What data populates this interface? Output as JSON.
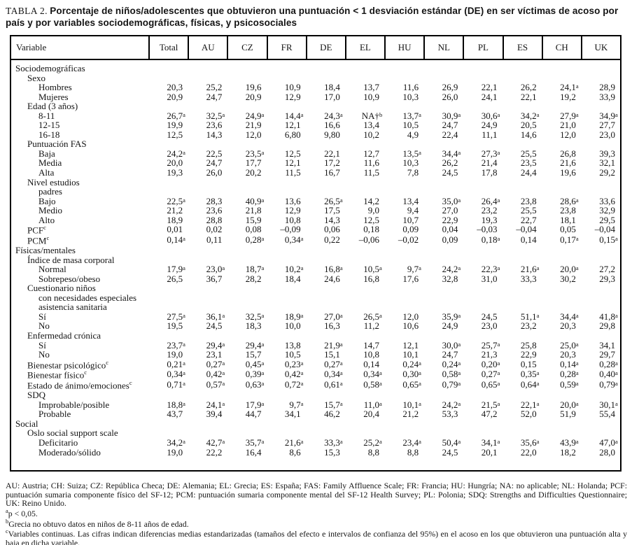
{
  "title": {
    "label": "TABLA 2.",
    "caption": "Porcentaje de niños/adolescentes que obtuvieron una puntuación < 1 desviación estándar (DE) en ser víctimas de acoso por país y por variables sociodemográficas, físicas, y psicosociales"
  },
  "table": {
    "columns": [
      "Variable",
      "Total",
      "AU",
      "CZ",
      "FR",
      "DE",
      "EL",
      "HU",
      "NL",
      "PL",
      "ES",
      "CH",
      "UK"
    ],
    "rows": [
      {
        "label": "Sociodemográficas",
        "indent": 0
      },
      {
        "label": "Sexo",
        "indent": 1
      },
      {
        "label": "Hombres",
        "indent": 2,
        "cells": [
          "20,3",
          "25,2",
          "19,6",
          "10,9",
          "18,4",
          "13,7",
          "11,6",
          "26,9",
          "22,1",
          "26,2",
          "24,1|a",
          "28,9"
        ]
      },
      {
        "label": "Mujeres",
        "indent": 2,
        "cells": [
          "20,9",
          "24,7",
          "20,9",
          "12,9",
          "17,0",
          "10,9",
          "10,3",
          "26,0",
          "24,1",
          "22,1",
          "19,2",
          "33,9"
        ]
      },
      {
        "label": "Edad (3 años)",
        "indent": 1
      },
      {
        "label": "8-11",
        "indent": 2,
        "cells": [
          "26,7|a",
          "32,5|a",
          "24,9|a",
          "14,4|a",
          "24,3|a",
          "NA†|b",
          "13,7|a",
          "30,9|a",
          "30,6|a",
          "34,2|a",
          "27,9|a",
          "34,9|a"
        ]
      },
      {
        "label": "12-15",
        "indent": 2,
        "cells": [
          "19,9",
          "23,6",
          "21,9",
          "12,1",
          "16,6",
          "13,4",
          "10,5",
          "24,7",
          "24,9",
          "20,5",
          "21,0",
          "27,7"
        ]
      },
      {
        "label": "16-18",
        "indent": 2,
        "cells": [
          "12,5",
          "14,3",
          "12,0",
          "6,80",
          "9,80",
          "10,2",
          "4,9",
          "22,4",
          "11,1",
          "14,6",
          "12,0",
          "23,0"
        ]
      },
      {
        "label": "Puntuación FAS",
        "indent": 1
      },
      {
        "label": "Baja",
        "indent": 2,
        "cells": [
          "24,2|a",
          "22,5",
          "23,5|a",
          "12,5",
          "22,1",
          "12,7",
          "13,5|a",
          "34,4|a",
          "27,3|a",
          "25,5",
          "26,8",
          "39,3"
        ]
      },
      {
        "label": "Media",
        "indent": 2,
        "cells": [
          "20,0",
          "24,7",
          "17,7",
          "12,1",
          "17,2",
          "11,6",
          "10,3",
          "26,2",
          "21,4",
          "23,5",
          "21,6",
          "32,1"
        ]
      },
      {
        "label": "Alta",
        "indent": 2,
        "cells": [
          "19,3",
          "26,0",
          "20,2",
          "11,5",
          "16,7",
          "11,5",
          "7,8",
          "24,5",
          "17,8",
          "24,4",
          "19,6",
          "29,2"
        ]
      },
      {
        "label": "Nivel estudios",
        "indent": 1
      },
      {
        "label": "padres",
        "indent": 2
      },
      {
        "label": "Bajo",
        "indent": 2,
        "cells": [
          "22,5|a",
          "28,3",
          "40,9|a",
          "13,6",
          "26,5|a",
          "14,2",
          "13,4",
          "35,0|a",
          "26,4|a",
          "23,8",
          "28,6|a",
          "33,6"
        ]
      },
      {
        "label": "Medio",
        "indent": 2,
        "cells": [
          "21,2",
          "23,6",
          "21,8",
          "12,9",
          "17,5",
          "9,0",
          "9,4",
          "27,0",
          "23,2",
          "25,5",
          "23,8",
          "32,9"
        ]
      },
      {
        "label": "Alto",
        "indent": 2,
        "cells": [
          "18,9",
          "28,8",
          "15,9",
          "10,8",
          "14,3",
          "12,5",
          "10,7",
          "22,9",
          "19,3",
          "22,7",
          "18,1",
          "29,5"
        ]
      },
      {
        "label": "PCF",
        "sup": "c",
        "indent": 1,
        "cells": [
          "0,01",
          "0,02",
          "0,08",
          "–0,09",
          "0,06",
          "0,18",
          "0,09",
          "0,04",
          "–0,03",
          "–0,04",
          "0,05",
          "–0,04"
        ]
      },
      {
        "label": "PCM",
        "sup": "c",
        "indent": 1,
        "cells": [
          "0,14|a",
          "0,11",
          "0,28|a",
          "0,34|a",
          "0,22",
          "–0,06",
          "–0,02",
          "0,09",
          "0,18|a",
          "0,14",
          "0,17|a",
          "0,15|a"
        ]
      },
      {
        "label": "Físicas/mentales",
        "indent": 0
      },
      {
        "label": "Índice de masa corporal",
        "indent": 1
      },
      {
        "label": "Normal",
        "indent": 2,
        "cells": [
          "17,9|a",
          "23,0|a",
          "18,7|a",
          "10,2|a",
          "16,8|a",
          "10,5|a",
          "9,7|a",
          "24,2|a",
          "22,3|a",
          "21,6|a",
          "20,0|a",
          "27,2"
        ]
      },
      {
        "label": "Sobrepeso/obeso",
        "indent": 2,
        "cells": [
          "26,5",
          "36,7",
          "28,2",
          "18,4",
          "24,6",
          "16,8",
          "17,6",
          "32,8",
          "31,0",
          "33,3",
          "30,2",
          "29,3"
        ]
      },
      {
        "label": "Cuestionario niños",
        "indent": 1
      },
      {
        "label": "con necesidades especiales",
        "indent": 2
      },
      {
        "label": "asistencia sanitaria",
        "indent": 2
      },
      {
        "label": "Sí",
        "indent": 2,
        "cells": [
          "27,5|a",
          "36,1|a",
          "32,5|a",
          "18,9|a",
          "27,0|a",
          "26,5|a",
          "12,0",
          "35,9|a",
          "24,5",
          "51,1|a",
          "34,4|a",
          "41,8|a"
        ]
      },
      {
        "label": "No",
        "indent": 2,
        "cells": [
          "19,5",
          "24,5",
          "18,3",
          "10,0",
          "16,3",
          "11,2",
          "10,6",
          "24,9",
          "23,0",
          "23,2",
          "20,3",
          "29,8"
        ]
      },
      {
        "label": "Enfermedad crónica",
        "indent": 1
      },
      {
        "label": "Sí",
        "indent": 2,
        "cells": [
          "23,7|a",
          "29,4|a",
          "29,4|a",
          "13,8",
          "21,9|a",
          "14,7",
          "12,1",
          "30,0|a",
          "25,7|a",
          "25,8",
          "25,0|a",
          "34,1"
        ]
      },
      {
        "label": "No",
        "indent": 2,
        "cells": [
          "19,0",
          "23,1",
          "15,7",
          "10,5",
          "15,1",
          "10,8",
          "10,1",
          "24,7",
          "21,3",
          "22,9",
          "20,3",
          "29,7"
        ]
      },
      {
        "label": "Bienestar psicológico",
        "sup": "c",
        "indent": 1,
        "cells": [
          "0,21|a",
          "0,27|a",
          "0,45|a",
          "0,23|a",
          "0,27|a",
          "0,14",
          "0,24|a",
          "0,24|a",
          "0,20|a",
          "0,15",
          "0,14|a",
          "0,28|a"
        ]
      },
      {
        "label": "Bienestar físico",
        "sup": "c",
        "indent": 1,
        "cells": [
          "0,34|a",
          "0,42|a",
          "0,39|a",
          "0,42|a",
          "0,34|a",
          "0,34|a",
          "0,30|a",
          "0,58|a",
          "0,27|a",
          "0,35|a",
          "0,28|a",
          "0,40|a"
        ]
      },
      {
        "label": "Estado de ánimo/emociones",
        "sup": "c",
        "indent": 1,
        "cells": [
          "0,71|a",
          "0,57|a",
          "0,63|a",
          "0,72|a",
          "0,61|a",
          "0,58|a",
          "0,65|a",
          "0,79|a",
          "0,65|a",
          "0,64|a",
          "0,59|a",
          "0,79|a"
        ]
      },
      {
        "label": "SDQ",
        "indent": 1
      },
      {
        "label": "Improbable/posible",
        "indent": 2,
        "cells": [
          "18,8|a",
          "24,1|a",
          "17,9|a",
          "9,7|a",
          "15,7|a",
          "11,0|a",
          "10,1|a",
          "24,2|a",
          "21,5|a",
          "22,1|a",
          "20,0|a",
          "30,1|a"
        ]
      },
      {
        "label": "Probable",
        "indent": 2,
        "cells": [
          "43,7",
          "39,4",
          "44,7",
          "34,1",
          "46,2",
          "20,4",
          "21,2",
          "53,3",
          "47,2",
          "52,0",
          "51,9",
          "55,4"
        ]
      },
      {
        "label": "Social",
        "indent": 0
      },
      {
        "label": "Oslo social support scale",
        "indent": 1
      },
      {
        "label": "Deficitario",
        "indent": 2,
        "cells": [
          "34,2|a",
          "42,7|a",
          "35,7|a",
          "21,6|a",
          "33,3|a",
          "25,2|a",
          "23,4|a",
          "50,4|a",
          "34,1|a",
          "35,6|a",
          "43,9|a",
          "47,0|a"
        ]
      },
      {
        "label": "Moderado/sólido",
        "indent": 2,
        "cells": [
          "19,0",
          "22,2",
          "16,4",
          "8,6",
          "15,3",
          "8,8",
          "8,8",
          "24,5",
          "20,1",
          "22,0",
          "18,2",
          "28,0"
        ]
      }
    ]
  },
  "footnotes": [
    {
      "sup": "",
      "text": "AU: Austria; CH: Suiza; CZ: República Checa; DE: Alemania; EL: Grecia; ES: España; FAS: Family Affluence Scale; FR: Francia; HU: Hungría; NA: no aplicable; NL: Holanda; PCF: puntuación sumaria componente físico del SF-12; PCM: puntuación sumaria componente mental del SF-12 Health Survey; PL: Polonia; SDQ: Strengths and Difficulties Questionnaire; UK: Reino Unido."
    },
    {
      "sup": "a",
      "text": "p < 0,05."
    },
    {
      "sup": "b",
      "text": "Grecia no obtuvo datos en niños de 8-11 años de edad."
    },
    {
      "sup": "c",
      "text": "Variables continuas. Las cifras indican diferencias medias estandarizadas (tamaños del efecto e intervalos de confianza del 95%) en el acoso en los que obtuvieron una puntuación alta y baja en dicha variable."
    }
  ]
}
